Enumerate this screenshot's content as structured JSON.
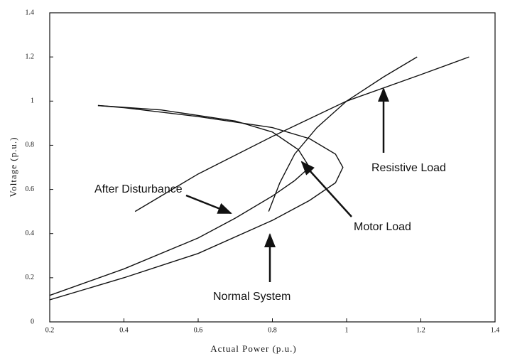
{
  "chart_data": {
    "type": "line",
    "xlabel": "Actual Power (p.u.)",
    "ylabel": "Voltage (p.u.)",
    "xlim": [
      0.2,
      1.4
    ],
    "xticks": [
      0.2,
      0.4,
      0.6,
      0.8,
      1,
      1.2,
      1.4
    ],
    "ylim": [
      0,
      1.4
    ],
    "yticks": [
      0,
      0.2,
      0.4,
      0.6,
      0.8,
      1,
      1.2,
      1.4
    ],
    "series": [
      {
        "name": "Normal System",
        "color": "#111111",
        "x": [
          0.2,
          0.4,
          0.6,
          0.8,
          0.9,
          0.97,
          0.99,
          0.97,
          0.9,
          0.8,
          0.6,
          0.4,
          0.33
        ],
        "values": [
          0.1,
          0.2,
          0.31,
          0.46,
          0.55,
          0.63,
          0.7,
          0.76,
          0.83,
          0.88,
          0.93,
          0.97,
          0.98
        ]
      },
      {
        "name": "After Disturbance",
        "color": "#111111",
        "x": [
          0.2,
          0.4,
          0.6,
          0.7,
          0.8,
          0.86,
          0.9,
          0.87,
          0.8,
          0.7,
          0.5,
          0.33
        ],
        "values": [
          0.12,
          0.24,
          0.38,
          0.47,
          0.57,
          0.64,
          0.7,
          0.78,
          0.86,
          0.91,
          0.96,
          0.98
        ]
      },
      {
        "name": "Motor Load",
        "color": "#111111",
        "x": [
          0.79,
          0.82,
          0.86,
          0.92,
          1.0,
          1.1,
          1.19
        ],
        "values": [
          0.5,
          0.63,
          0.76,
          0.88,
          1.0,
          1.11,
          1.2
        ]
      },
      {
        "name": "Resistive Load",
        "color": "#111111",
        "x": [
          0.43,
          0.6,
          0.8,
          1.0,
          1.2,
          1.33
        ],
        "values": [
          0.5,
          0.67,
          0.84,
          1.0,
          1.12,
          1.2
        ]
      }
    ]
  }
}
